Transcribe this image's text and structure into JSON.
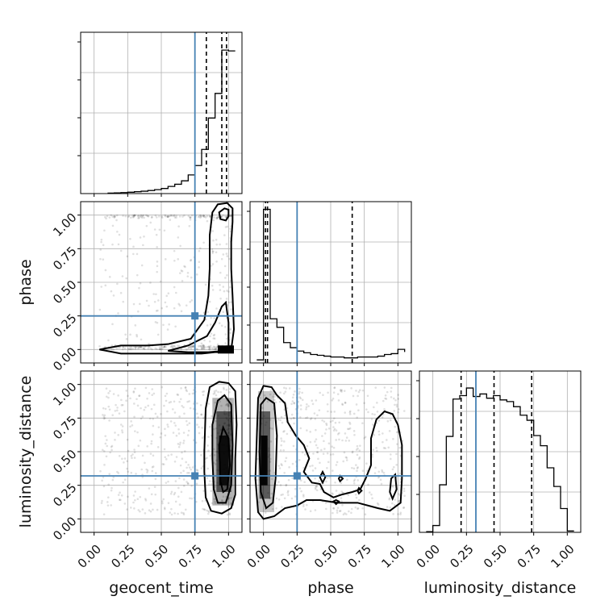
{
  "chart_data": {
    "type": "corner",
    "parameters": [
      "geocent_time",
      "phase",
      "luminosity_distance"
    ],
    "axis_range": [
      -0.1,
      1.1
    ],
    "tick_values": [
      0.0,
      0.25,
      0.5,
      0.75,
      1.0
    ],
    "tick_labels": [
      "0.00",
      "0.25",
      "0.50",
      "0.75",
      "1.00"
    ],
    "truths": {
      "geocent_time": 0.75,
      "phase": 0.25,
      "luminosity_distance": 0.32
    },
    "truth_color": "#4682b4",
    "grid": true,
    "histograms": [
      {
        "parameter": "geocent_time",
        "bin_edges": [
          0.1,
          0.15,
          0.2,
          0.25,
          0.3,
          0.35,
          0.4,
          0.45,
          0.5,
          0.55,
          0.6,
          0.65,
          0.7,
          0.75,
          0.8,
          0.85,
          0.9,
          0.95,
          1.0,
          1.05
        ],
        "counts": [
          0.003,
          0.004,
          0.006,
          0.008,
          0.011,
          0.014,
          0.018,
          0.023,
          0.03,
          0.042,
          0.055,
          0.075,
          0.11,
          0.165,
          0.26,
          0.445,
          0.59,
          0.845,
          0.84
        ],
        "quantiles": [
          0.835,
          0.95,
          0.985
        ]
      },
      {
        "parameter": "phase",
        "bin_edges": [
          -0.05,
          0.0,
          0.05,
          0.1,
          0.15,
          0.2,
          0.25,
          0.3,
          0.35,
          0.4,
          0.45,
          0.5,
          0.55,
          0.6,
          0.65,
          0.7,
          0.75,
          0.8,
          0.85,
          0.9,
          0.95,
          1.0,
          1.05
        ],
        "counts": [
          0.018,
          0.905,
          0.26,
          0.21,
          0.12,
          0.09,
          0.07,
          0.06,
          0.05,
          0.045,
          0.04,
          0.035,
          0.035,
          0.03,
          0.03,
          0.035,
          0.035,
          0.035,
          0.04,
          0.05,
          0.055,
          0.08,
          0.065
        ],
        "quantiles": [
          0.015,
          0.03,
          0.66
        ]
      },
      {
        "parameter": "luminosity_distance",
        "bin_edges": [
          -0.05,
          0.0,
          0.05,
          0.1,
          0.15,
          0.2,
          0.25,
          0.3,
          0.35,
          0.4,
          0.45,
          0.5,
          0.55,
          0.6,
          0.65,
          0.7,
          0.75,
          0.8,
          0.85,
          0.9,
          0.95,
          1.0,
          1.05
        ],
        "counts": [
          0.004,
          0.04,
          0.28,
          0.565,
          0.785,
          0.805,
          0.85,
          0.8,
          0.815,
          0.79,
          0.805,
          0.78,
          0.77,
          0.74,
          0.69,
          0.66,
          0.57,
          0.51,
          0.38,
          0.27,
          0.14,
          0.008
        ],
        "quantiles": [
          0.21,
          0.455,
          0.735
        ]
      }
    ],
    "pairs": [
      {
        "x": "geocent_time",
        "y": "phase",
        "contours": [
          [
            [
              0.04,
              0.0
            ],
            [
              0.2,
              -0.03
            ],
            [
              0.6,
              -0.03
            ],
            [
              0.8,
              -0.03
            ],
            [
              0.9,
              -0.02
            ],
            [
              0.97,
              -0.02
            ],
            [
              1.02,
              0.0
            ],
            [
              1.04,
              0.15
            ],
            [
              1.03,
              0.4
            ],
            [
              1.02,
              0.6
            ],
            [
              1.02,
              0.8
            ],
            [
              1.03,
              0.95
            ],
            [
              1.03,
              1.05
            ],
            [
              0.99,
              1.09
            ],
            [
              0.92,
              1.08
            ],
            [
              0.88,
              1.02
            ],
            [
              0.86,
              0.85
            ],
            [
              0.86,
              0.6
            ],
            [
              0.85,
              0.4
            ],
            [
              0.82,
              0.22
            ],
            [
              0.72,
              0.08
            ],
            [
              0.55,
              0.04
            ],
            [
              0.4,
              0.03
            ],
            [
              0.2,
              0.03
            ],
            [
              0.04,
              0.0
            ]
          ],
          [
            [
              0.55,
              -0.01
            ],
            [
              0.7,
              -0.02
            ],
            [
              0.85,
              -0.02
            ],
            [
              0.97,
              -0.01
            ],
            [
              1.0,
              0.02
            ],
            [
              1.0,
              0.2
            ],
            [
              0.98,
              0.35
            ],
            [
              0.95,
              0.32
            ],
            [
              0.9,
              0.2
            ],
            [
              0.84,
              0.1
            ],
            [
              0.7,
              0.03
            ],
            [
              0.55,
              -0.01
            ]
          ],
          [
            [
              0.94,
              0.97
            ],
            [
              0.98,
              0.96
            ],
            [
              1.0,
              0.99
            ],
            [
              1.0,
              1.04
            ],
            [
              0.97,
              1.05
            ],
            [
              0.93,
              1.02
            ],
            [
              0.94,
              0.97
            ]
          ]
        ],
        "dense_blocks": [
          {
            "x": [
              0.92,
              1.04
            ],
            "y": [
              -0.03,
              0.03
            ],
            "shade": 1.0
          }
        ]
      },
      {
        "x": "geocent_time",
        "y": "luminosity_distance",
        "contours": [
          [
            [
              0.82,
              0.5
            ],
            [
              0.83,
              0.82
            ],
            [
              0.86,
              0.98
            ],
            [
              0.93,
              1.02
            ],
            [
              1.0,
              1.01
            ],
            [
              1.05,
              0.95
            ],
            [
              1.06,
              0.7
            ],
            [
              1.05,
              0.45
            ],
            [
              1.05,
              0.18
            ],
            [
              1.02,
              0.08
            ],
            [
              0.95,
              0.04
            ],
            [
              0.87,
              0.06
            ],
            [
              0.83,
              0.16
            ],
            [
              0.82,
              0.35
            ],
            [
              0.82,
              0.5
            ]
          ],
          [
            [
              0.88,
              0.45
            ],
            [
              0.88,
              0.7
            ],
            [
              0.92,
              0.88
            ],
            [
              0.97,
              0.92
            ],
            [
              1.02,
              0.85
            ],
            [
              1.03,
              0.55
            ],
            [
              1.02,
              0.25
            ],
            [
              0.98,
              0.12
            ],
            [
              0.92,
              0.12
            ],
            [
              0.89,
              0.22
            ],
            [
              0.88,
              0.45
            ]
          ],
          [
            [
              0.94,
              0.28
            ],
            [
              0.93,
              0.55
            ],
            [
              0.96,
              0.68
            ],
            [
              1.0,
              0.6
            ],
            [
              1.01,
              0.4
            ],
            [
              0.99,
              0.22
            ],
            [
              0.96,
              0.2
            ],
            [
              0.94,
              0.28
            ]
          ]
        ],
        "dense_blocks": [
          {
            "x": [
              0.88,
              1.04
            ],
            "y": [
              0.1,
              0.9
            ],
            "shade": 0.3
          },
          {
            "x": [
              0.91,
              1.02
            ],
            "y": [
              0.2,
              0.8
            ],
            "shade": 0.55
          },
          {
            "x": [
              0.93,
              1.0
            ],
            "y": [
              0.25,
              0.62
            ],
            "shade": 0.85
          }
        ]
      },
      {
        "x": "phase",
        "y": "luminosity_distance",
        "contours": [
          [
            [
              -0.05,
              0.6
            ],
            [
              -0.04,
              0.9
            ],
            [
              0.0,
              0.99
            ],
            [
              0.06,
              0.98
            ],
            [
              0.1,
              0.92
            ],
            [
              0.16,
              0.86
            ],
            [
              0.18,
              0.72
            ],
            [
              0.24,
              0.62
            ],
            [
              0.3,
              0.55
            ],
            [
              0.34,
              0.45
            ],
            [
              0.3,
              0.35
            ],
            [
              0.36,
              0.27
            ],
            [
              0.42,
              0.26
            ],
            [
              0.45,
              0.2
            ],
            [
              0.52,
              0.16
            ],
            [
              0.58,
              0.18
            ],
            [
              0.66,
              0.2
            ],
            [
              0.72,
              0.22
            ],
            [
              0.76,
              0.3
            ],
            [
              0.8,
              0.4
            ],
            [
              0.8,
              0.6
            ],
            [
              0.84,
              0.74
            ],
            [
              0.9,
              0.8
            ],
            [
              0.96,
              0.78
            ],
            [
              1.0,
              0.7
            ],
            [
              1.03,
              0.55
            ],
            [
              1.03,
              0.3
            ],
            [
              1.02,
              0.12
            ],
            [
              0.94,
              0.06
            ],
            [
              0.85,
              0.08
            ],
            [
              0.7,
              0.12
            ],
            [
              0.55,
              0.12
            ],
            [
              0.42,
              0.14
            ],
            [
              0.32,
              0.14
            ],
            [
              0.25,
              0.1
            ],
            [
              0.16,
              0.08
            ],
            [
              0.08,
              0.02
            ],
            [
              0.0,
              0.0
            ],
            [
              -0.04,
              0.05
            ],
            [
              -0.06,
              0.3
            ],
            [
              -0.05,
              0.6
            ]
          ],
          [
            [
              -0.02,
              0.2
            ],
            [
              -0.03,
              0.5
            ],
            [
              -0.02,
              0.85
            ],
            [
              0.02,
              0.9
            ],
            [
              0.08,
              0.86
            ],
            [
              0.1,
              0.62
            ],
            [
              0.09,
              0.3
            ],
            [
              0.07,
              0.12
            ],
            [
              0.02,
              0.08
            ],
            [
              -0.02,
              0.2
            ]
          ],
          [
            [
              0.96,
              0.15
            ],
            [
              0.99,
              0.22
            ],
            [
              0.98,
              0.33
            ],
            [
              0.95,
              0.3
            ],
            [
              0.94,
              0.2
            ],
            [
              0.96,
              0.15
            ]
          ],
          [
            [
              0.44,
              0.27
            ],
            [
              0.46,
              0.31
            ],
            [
              0.44,
              0.35
            ],
            [
              0.42,
              0.31
            ],
            [
              0.44,
              0.27
            ]
          ],
          [
            [
              0.57,
              0.28
            ],
            [
              0.59,
              0.3
            ],
            [
              0.57,
              0.32
            ],
            [
              0.56,
              0.3
            ],
            [
              0.57,
              0.28
            ]
          ],
          [
            [
              0.71,
              0.19
            ],
            [
              0.73,
              0.21
            ],
            [
              0.71,
              0.23
            ],
            [
              0.7,
              0.21
            ],
            [
              0.71,
              0.19
            ]
          ],
          [
            [
              0.54,
              0.11
            ],
            [
              0.56,
              0.13
            ],
            [
              0.54,
              0.14
            ],
            [
              0.52,
              0.13
            ],
            [
              0.54,
              0.11
            ]
          ]
        ],
        "dense_blocks": [
          {
            "x": [
              -0.04,
              0.08
            ],
            "y": [
              0.05,
              0.95
            ],
            "shade": 0.22
          },
          {
            "x": [
              -0.03,
              0.05
            ],
            "y": [
              0.15,
              0.8
            ],
            "shade": 0.55
          },
          {
            "x": [
              -0.02,
              0.03
            ],
            "y": [
              0.25,
              0.62
            ],
            "shade": 0.95
          }
        ]
      }
    ]
  }
}
